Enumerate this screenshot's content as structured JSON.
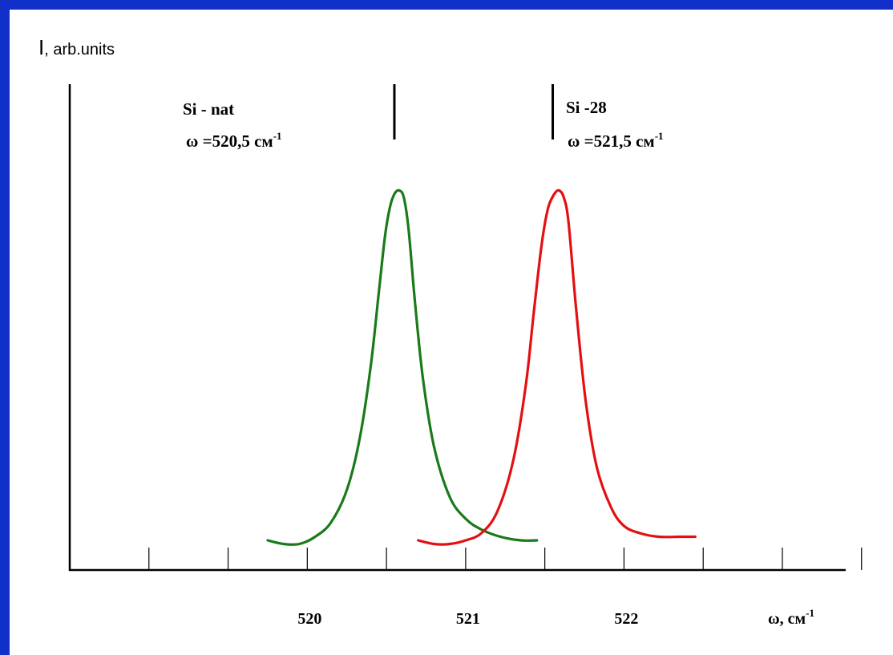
{
  "chart_data": {
    "type": "line",
    "ylabel": {
      "symbol": "I",
      "rest": ", arb.units"
    },
    "xlabel": {
      "main": "ω, см",
      "sup": "-1"
    },
    "xlim": [
      518.5,
      523.4
    ],
    "ylim": [
      0,
      1
    ],
    "x_ticks": [
      519.0,
      519.5,
      520.0,
      520.5,
      521.0,
      521.5,
      522.0,
      522.5,
      523.0,
      523.5
    ],
    "x_tick_labels": [
      {
        "x": 520.0,
        "label": "520"
      },
      {
        "x": 521.0,
        "label": "521"
      },
      {
        "x": 522.0,
        "label": "522"
      }
    ],
    "grid": false,
    "series": [
      {
        "color": "#1a7a1a",
        "x": [
          519.75,
          519.85,
          519.95,
          520.05,
          520.15,
          520.25,
          520.33,
          520.4,
          520.45,
          520.49,
          520.52,
          520.55,
          520.58,
          520.61,
          520.64,
          520.68,
          520.73,
          520.8,
          520.9,
          521.0,
          521.1,
          521.22,
          521.35,
          521.45
        ],
        "y": [
          0.02,
          0.01,
          0.01,
          0.03,
          0.07,
          0.16,
          0.3,
          0.5,
          0.7,
          0.86,
          0.94,
          0.98,
          0.99,
          0.97,
          0.88,
          0.68,
          0.47,
          0.28,
          0.14,
          0.08,
          0.05,
          0.03,
          0.02,
          0.02
        ]
      },
      {
        "color": "#e41010",
        "x": [
          520.7,
          520.8,
          520.9,
          521.0,
          521.1,
          521.2,
          521.3,
          521.38,
          521.43,
          521.48,
          521.52,
          521.56,
          521.59,
          521.62,
          521.65,
          521.7,
          521.76,
          521.83,
          521.92,
          522.0,
          522.1,
          522.22,
          522.35,
          522.45
        ],
        "y": [
          0.02,
          0.01,
          0.01,
          0.02,
          0.04,
          0.1,
          0.24,
          0.45,
          0.65,
          0.84,
          0.94,
          0.98,
          0.99,
          0.97,
          0.9,
          0.65,
          0.4,
          0.22,
          0.11,
          0.06,
          0.04,
          0.03,
          0.03,
          0.03
        ]
      }
    ],
    "annotations": [
      {
        "line1": "Si - nat",
        "line2": "ω =520,5 см",
        "sup": "-1",
        "marker_x": 520.55
      },
      {
        "line1": "Si -28",
        "line2": "ω =521,5 см",
        "sup": "-1",
        "marker_x": 521.55
      }
    ]
  }
}
